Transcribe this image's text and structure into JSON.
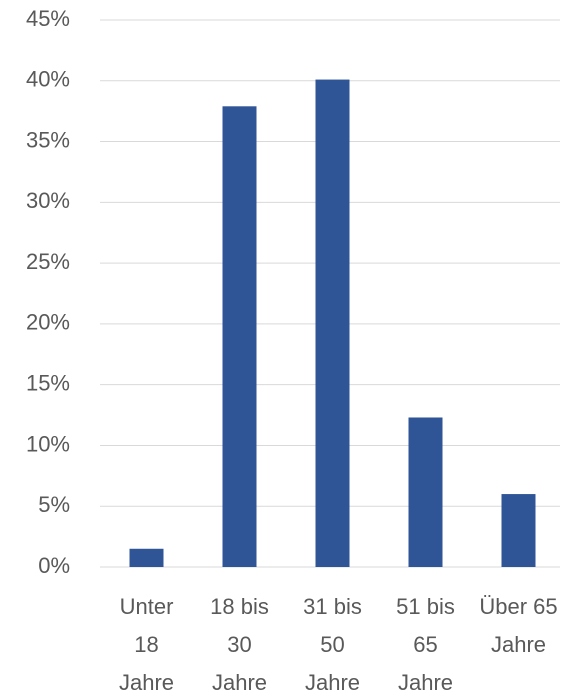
{
  "chart_data": {
    "type": "bar",
    "categories": [
      "Unter 18 Jahre",
      "18 bis 30 Jahre",
      "31 bis 50 Jahre",
      "51 bis 65 Jahre",
      "Über 65 Jahre"
    ],
    "values": [
      1.5,
      37.9,
      40.1,
      12.3,
      6.0
    ],
    "color": "#2f5597",
    "ylim": [
      0,
      45
    ],
    "yticks": [
      {
        "value": 0,
        "label": "0%"
      },
      {
        "value": 5,
        "label": "5%"
      },
      {
        "value": 10,
        "label": "10%"
      },
      {
        "value": 15,
        "label": "15%"
      },
      {
        "value": 20,
        "label": "20%"
      },
      {
        "value": 25,
        "label": "25%"
      },
      {
        "value": 30,
        "label": "30%"
      },
      {
        "value": 35,
        "label": "35%"
      },
      {
        "value": 40,
        "label": "40%"
      },
      {
        "value": 45,
        "label": "45%"
      }
    ],
    "grid": true
  }
}
